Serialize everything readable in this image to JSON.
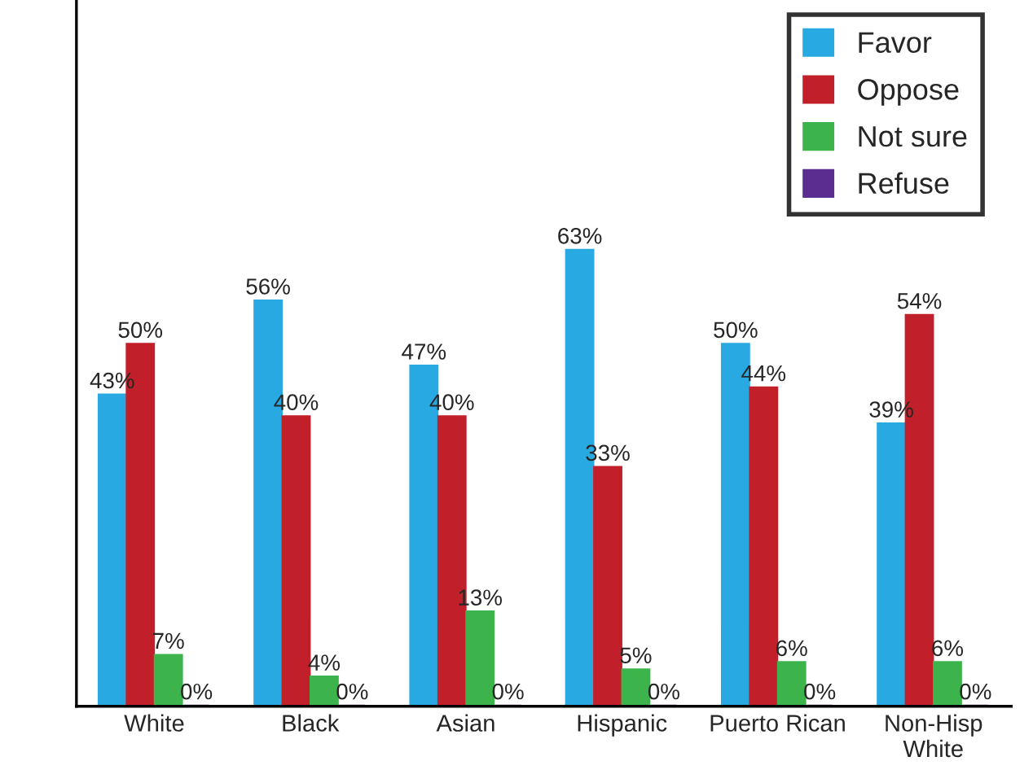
{
  "chart_data": {
    "type": "bar",
    "categories": [
      "White",
      "Black",
      "Asian",
      "Hispanic",
      "Puerto Rican",
      "Non-Hisp White"
    ],
    "series": [
      {
        "name": "Favor",
        "color": "#29a9e1",
        "values": [
          43,
          56,
          47,
          63,
          50,
          39
        ],
        "value_labels": [
          "43%",
          "56%",
          "47%",
          "63%",
          "50%",
          "39%"
        ]
      },
      {
        "name": "Oppose",
        "color": "#c1202a",
        "values": [
          50,
          40,
          40,
          33,
          44,
          54
        ],
        "value_labels": [
          "50%",
          "40%",
          "40%",
          "33%",
          "44%",
          "54%"
        ]
      },
      {
        "name": "Not sure",
        "color": "#3cb44b",
        "values": [
          7,
          4,
          13,
          5,
          6,
          6
        ],
        "value_labels": [
          "7%",
          "4%",
          "13%",
          "5%",
          "6%",
          "6%"
        ]
      },
      {
        "name": "Refuse",
        "color": "#5b2d90",
        "values": [
          0,
          0,
          0,
          0,
          0,
          0
        ],
        "value_labels": [
          "0%",
          "0%",
          "0%",
          "0%",
          "0%",
          "0%"
        ]
      }
    ],
    "legend": "top right"
  }
}
